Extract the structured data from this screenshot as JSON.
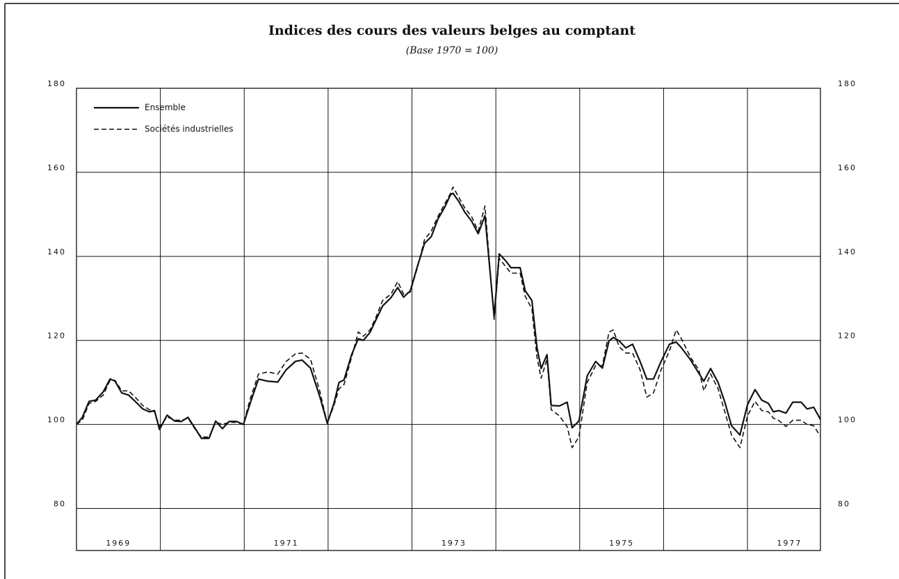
{
  "chart_data": {
    "type": "line",
    "title": "Indices des cours des valeurs belges au comptant",
    "subtitle": "(Base 1970 = 100)",
    "x": [
      1969.0,
      1969.07,
      1969.15,
      1969.23,
      1969.32,
      1969.4,
      1969.46,
      1969.54,
      1969.62,
      1969.7,
      1969.79,
      1969.87,
      1969.93,
      1969.99,
      1970.08,
      1970.17,
      1970.25,
      1970.33,
      1970.41,
      1970.49,
      1970.58,
      1970.66,
      1970.74,
      1970.82,
      1970.91,
      1970.99,
      1971.07,
      1971.17,
      1971.28,
      1971.4,
      1971.5,
      1971.61,
      1971.69,
      1971.79,
      1971.9,
      1971.99,
      1972.07,
      1972.13,
      1972.19,
      1972.28,
      1972.36,
      1972.42,
      1972.5,
      1972.57,
      1972.65,
      1972.75,
      1972.83,
      1972.9,
      1972.98,
      1973.06,
      1973.15,
      1973.23,
      1973.31,
      1973.39,
      1973.46,
      1973.49,
      1973.56,
      1973.63,
      1973.71,
      1973.79,
      1973.87,
      1973.98,
      1974.04,
      1974.12,
      1974.18,
      1974.29,
      1974.35,
      1974.43,
      1974.49,
      1974.54,
      1974.61,
      1974.66,
      1974.76,
      1974.85,
      1974.91,
      1974.99,
      1975.09,
      1975.19,
      1975.27,
      1975.35,
      1975.4,
      1975.47,
      1975.55,
      1975.63,
      1975.72,
      1975.8,
      1975.88,
      1975.97,
      1976.07,
      1976.15,
      1976.21,
      1976.32,
      1976.42,
      1976.48,
      1976.56,
      1976.65,
      1976.73,
      1976.81,
      1976.91,
      1977.0,
      1977.09,
      1977.17,
      1977.25,
      1977.31,
      1977.37,
      1977.46,
      1977.54,
      1977.64,
      1977.71,
      1977.79,
      1977.87
    ],
    "series": [
      {
        "name": "Ensemble",
        "color": "#111111",
        "dash": false,
        "values": [
          100,
          101.7,
          105.5,
          105.8,
          107.8,
          110.8,
          110.3,
          107.5,
          107,
          105.5,
          103.7,
          103,
          103.3,
          98.8,
          102.2,
          100.8,
          100.7,
          101.7,
          99.2,
          96.7,
          96.7,
          100.8,
          99,
          100.7,
          100.7,
          100,
          105,
          110.8,
          110.3,
          110.1,
          113,
          115,
          115.3,
          113.4,
          106.7,
          100.3,
          105,
          110,
          110.6,
          116.6,
          120.4,
          120,
          121.9,
          124.9,
          128.2,
          130.2,
          132.6,
          130.3,
          131.8,
          137.3,
          143.1,
          144.7,
          148.9,
          151.7,
          154.7,
          155,
          153,
          150.5,
          148.4,
          145.4,
          149.7,
          125.7,
          140.6,
          138.9,
          137.3,
          137.3,
          131.8,
          129.5,
          118.3,
          113.3,
          116.6,
          104.5,
          104.4,
          105.3,
          99.2,
          100.8,
          111.6,
          115,
          113.4,
          119.9,
          120.7,
          119.9,
          118.2,
          119.1,
          115,
          110.8,
          110.8,
          115,
          119.1,
          119.6,
          118.3,
          115.4,
          112.2,
          110.3,
          113.3,
          110,
          105.3,
          99.7,
          97.5,
          104.7,
          108.3,
          105.8,
          105,
          103,
          103.3,
          102.7,
          105.3,
          105.3,
          103.7,
          104.1,
          101.2
        ]
      },
      {
        "name": "Sociétés industrielles",
        "color": "#111111",
        "dash": true,
        "values": [
          100,
          101,
          105,
          105.5,
          107,
          110.5,
          110.5,
          108,
          108,
          106.5,
          104.5,
          103.5,
          103,
          99.5,
          101.8,
          101,
          101,
          101.5,
          99,
          97,
          97,
          100.5,
          100,
          100.5,
          100.5,
          100,
          106,
          112,
          112.5,
          112,
          115,
          116.8,
          117,
          115.5,
          108,
          100.3,
          104.5,
          108.5,
          109.5,
          116,
          122,
          121,
          122.5,
          125.5,
          129.5,
          131,
          134,
          131,
          131.5,
          137,
          144,
          146,
          149.5,
          152.5,
          155,
          156.5,
          154,
          151.5,
          149.5,
          146,
          152,
          125,
          139.5,
          137.5,
          136,
          136,
          130.5,
          127.5,
          116,
          111,
          115.5,
          103.5,
          102,
          99.5,
          94.5,
          97,
          110,
          114,
          114,
          122,
          122.5,
          118.5,
          117,
          117,
          113,
          106.5,
          107.5,
          113,
          117.5,
          122.5,
          120.5,
          116,
          113,
          108,
          112,
          108.5,
          103,
          97.5,
          94.5,
          102,
          105.5,
          103.3,
          103,
          101.5,
          101,
          99.5,
          101,
          101,
          100,
          99.7,
          97.2
        ]
      }
    ],
    "xlim": [
      1969,
      1977.87
    ],
    "xticks": [
      1969,
      1970,
      1971,
      1972,
      1973,
      1974,
      1975,
      1976,
      1977
    ],
    "xtick_labels": [
      {
        "value": 1969.5,
        "label": "1969"
      },
      {
        "value": 1971.5,
        "label": "1971"
      },
      {
        "value": 1973.5,
        "label": "1973"
      },
      {
        "value": 1975.5,
        "label": "1975"
      },
      {
        "value": 1977.5,
        "label": "1977"
      }
    ],
    "ylim": [
      70,
      180
    ],
    "yticks": [
      80,
      100,
      120,
      140,
      160,
      180
    ],
    "y2lim": [
      70,
      180
    ],
    "y2ticks": [
      80,
      100,
      120,
      140,
      160,
      180
    ],
    "grid": true,
    "legend": "top-left"
  }
}
